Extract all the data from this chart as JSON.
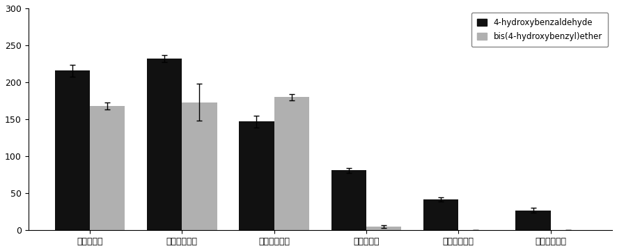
{
  "categories": [
    "천마피생건",
    "천마유피생건",
    "천마거피생건",
    "천마피증건",
    "천마유피증건",
    "천마거피증건"
  ],
  "black_values": [
    216,
    232,
    147,
    81,
    42,
    27
  ],
  "gray_values": [
    168,
    173,
    180,
    5,
    0,
    0
  ],
  "black_errors": [
    8,
    5,
    8,
    3,
    3,
    3
  ],
  "gray_errors": [
    5,
    25,
    4,
    2,
    0,
    0
  ],
  "black_color": "#111111",
  "gray_color": "#b0b0b0",
  "bg_color": "#ffffff",
  "ylim": [
    0,
    300
  ],
  "yticks": [
    0,
    50,
    100,
    150,
    200,
    250,
    300
  ],
  "legend_labels": [
    "4-hydroxybenzaldehyde",
    "bis(4-hydroxybenzyl)ether"
  ],
  "bar_width": 0.38,
  "figsize": [
    8.86,
    3.6
  ],
  "dpi": 100
}
